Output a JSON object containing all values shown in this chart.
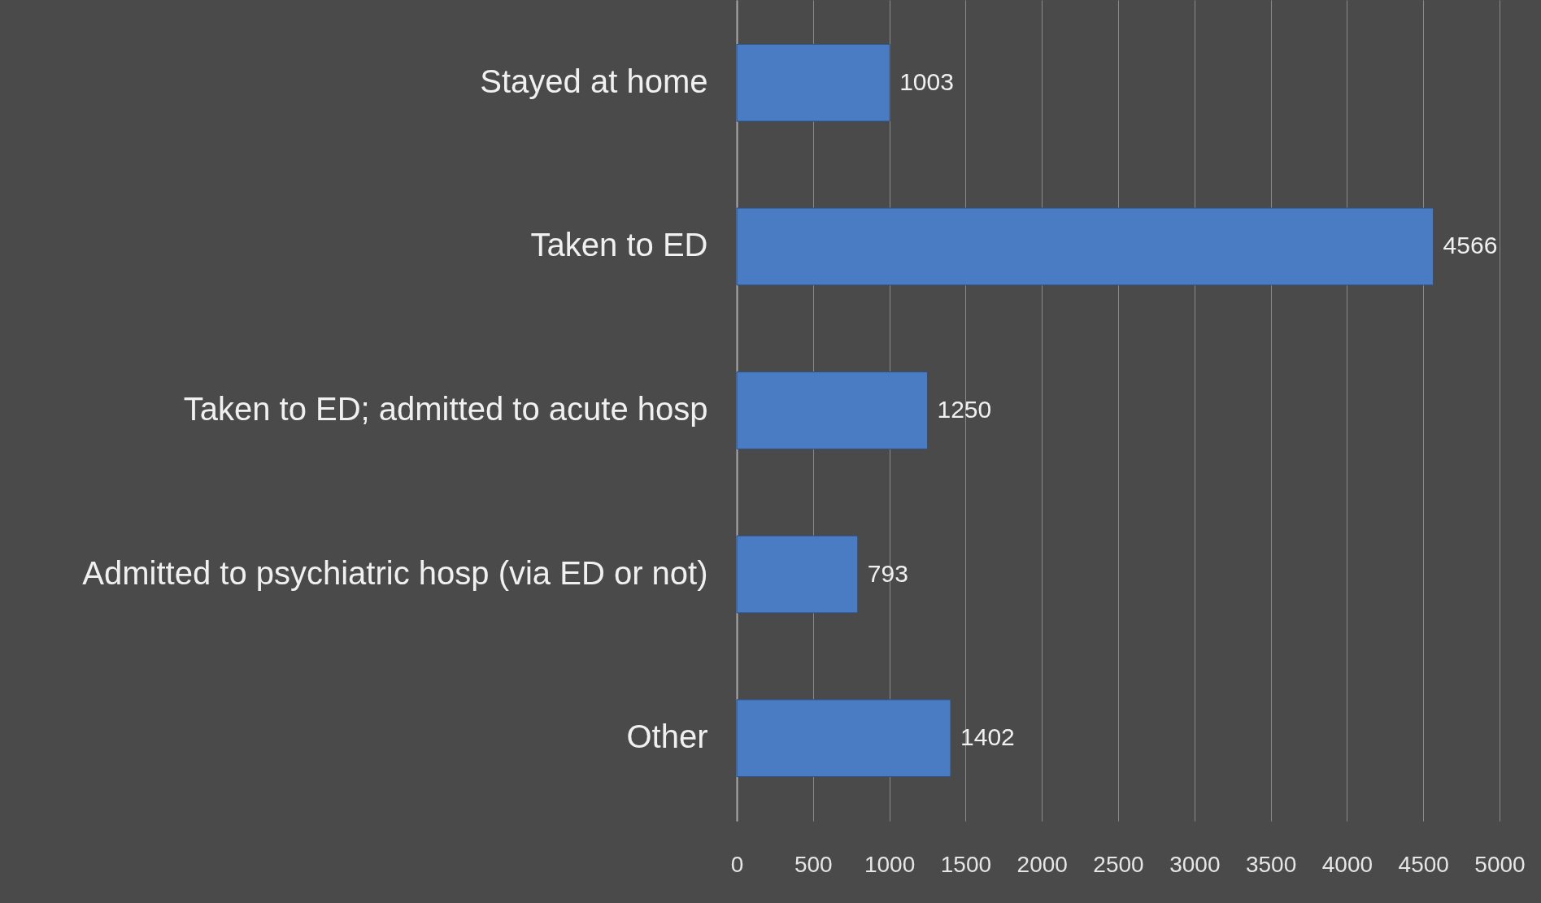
{
  "chart_data": {
    "type": "bar",
    "orientation": "horizontal",
    "categories": [
      "Stayed at home",
      "Taken to ED",
      "Taken to ED; admitted to acute hosp",
      "Admitted to psychiatric hosp (via ED or not)",
      "Other"
    ],
    "values": [
      1003,
      4566,
      1250,
      793,
      1402
    ],
    "color": "#4a7cc4",
    "xlim": [
      0,
      5000
    ],
    "xticks": [
      0,
      500,
      1000,
      1500,
      2000,
      2500,
      3000,
      3500,
      4000,
      4500,
      5000
    ],
    "grid": "x",
    "data_labels": true
  }
}
